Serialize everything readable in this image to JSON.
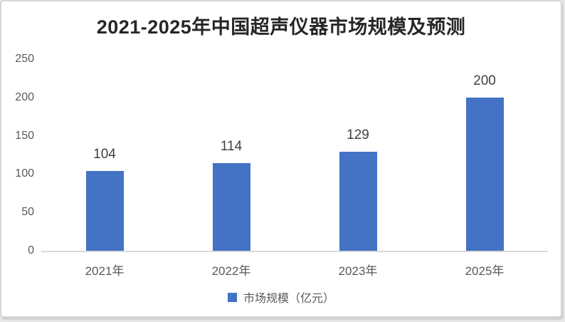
{
  "chart_data": {
    "type": "bar",
    "title": "2021-2025年中国超声仪器市场规模及预测",
    "categories": [
      "2021年",
      "2022年",
      "2023年",
      "2025年"
    ],
    "series": [
      {
        "name": "市场规模（亿元）",
        "values": [
          104,
          114,
          129,
          200
        ]
      }
    ],
    "data_labels": [
      "104",
      "114",
      "129",
      "200"
    ],
    "yticks": [
      0,
      50,
      100,
      150,
      200,
      250
    ],
    "ylim": [
      0,
      250
    ],
    "xlabel": "",
    "ylabel": "",
    "grid": false,
    "legend": {
      "label": "市场规模（亿元）",
      "position": "bottom"
    }
  },
  "colors": {
    "bar": "#4472C4",
    "axis_line": "#d9d9d9",
    "tick_label": "#595959",
    "data_label": "#404040",
    "title": "#262626",
    "card_border": "#d5d5d5"
  }
}
